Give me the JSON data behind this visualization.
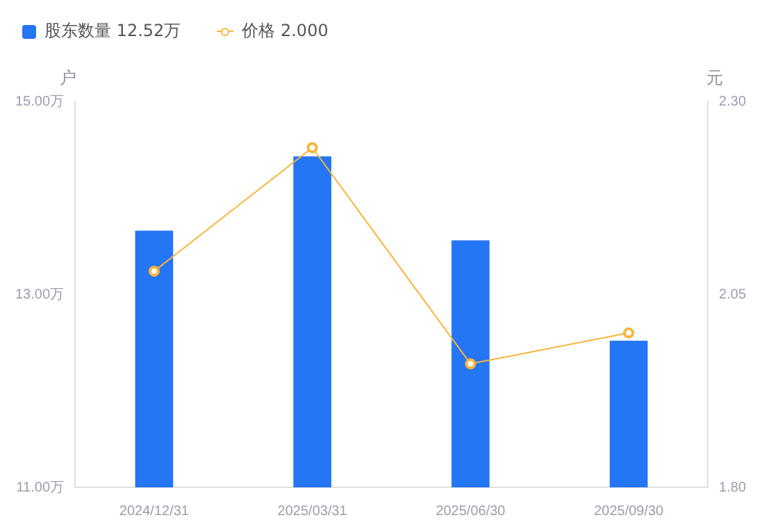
{
  "chart_data": {
    "type": "bar",
    "categories": [
      "2024/12/31",
      "2025/03/31",
      "2025/06/30",
      "2025/09/30"
    ],
    "series": [
      {
        "name": "股东数量 12.52万",
        "color": "#2476f4",
        "values": [
          13.66,
          14.43,
          13.56,
          12.52
        ]
      },
      {
        "name": "价格 2.000",
        "type": "line",
        "axis": "y2",
        "color": "#f9b43c",
        "marker": "circle",
        "values": [
          2.08,
          2.24,
          1.96,
          2.0
        ]
      }
    ],
    "ylabel": "户",
    "y2label": "元",
    "ylim": [
      11,
      15
    ],
    "yticks": [
      {
        "value": 11,
        "label": "11.00万"
      },
      {
        "value": 13,
        "label": "13.00万"
      },
      {
        "value": 15,
        "label": "15.00万"
      }
    ],
    "y2lim": [
      1.8,
      2.3
    ],
    "y2ticks": [
      {
        "value": 1.8,
        "label": "1.80"
      },
      {
        "value": 2.05,
        "label": "2.05"
      },
      {
        "value": 2.3,
        "label": "2.30"
      }
    ],
    "grid": false,
    "legend": "top left"
  }
}
